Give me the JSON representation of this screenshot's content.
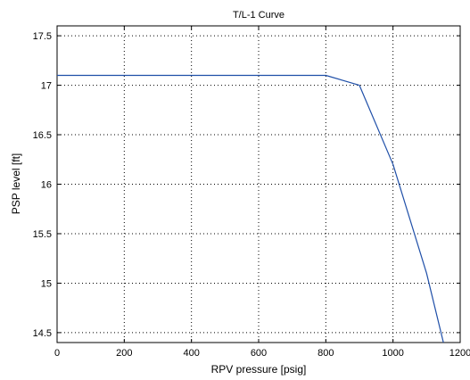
{
  "chart_data": {
    "type": "line",
    "title": "T/L-1 Curve",
    "xlabel": "RPV pressure [psig]",
    "ylabel": "PSP level [ft]",
    "xlim": [
      0,
      1200
    ],
    "ylim": [
      14.4,
      17.6
    ],
    "xticks": [
      0,
      200,
      400,
      600,
      800,
      1000,
      1200
    ],
    "yticks": [
      14.5,
      15,
      15.5,
      16,
      16.5,
      17,
      17.5
    ],
    "xtick_labels": [
      "0",
      "200",
      "400",
      "600",
      "800",
      "1000",
      "1200"
    ],
    "ytick_labels": [
      "14.5",
      "15",
      "15.5",
      "16",
      "16.5",
      "17",
      "17.5"
    ],
    "grid": true,
    "grid_style": "dotted",
    "series": [
      {
        "color": "#1f4fa8",
        "x": [
          0,
          800,
          900,
          1000,
          1100,
          1150
        ],
        "y": [
          17.1,
          17.1,
          17.0,
          16.2,
          15.1,
          14.4
        ]
      }
    ]
  }
}
